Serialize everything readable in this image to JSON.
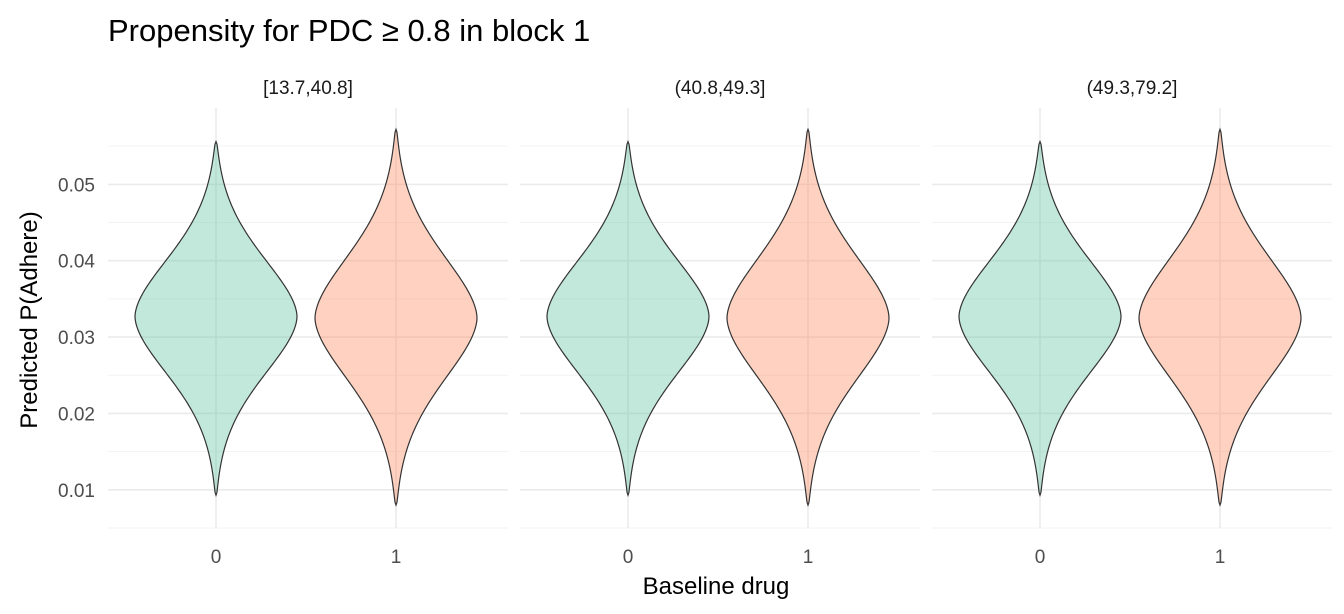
{
  "chart_data": {
    "type": "violin",
    "title": "Propensity for PDC ≥ 0.8 in block 1",
    "xlabel": "Baseline drug",
    "ylabel": "Predicted P(Adhere)",
    "categories": [
      "0",
      "1"
    ],
    "colors": {
      "0": "#66c2a5",
      "1": "#fc8d62"
    },
    "fill_opacity": 0.4,
    "yticks": [
      "0.01",
      "0.02",
      "0.03",
      "0.04",
      "0.05"
    ],
    "ylim": [
      0.005,
      0.06
    ],
    "grid": true,
    "facets": [
      {
        "label": "[13.7,40.8]",
        "groups": [
          {
            "category": "0",
            "min": 0.0093,
            "max": 0.0556,
            "mode": 0.0327
          },
          {
            "category": "1",
            "min": 0.008,
            "max": 0.0572,
            "mode": 0.0325
          }
        ]
      },
      {
        "label": "(40.8,49.3]",
        "groups": [
          {
            "category": "0",
            "min": 0.0093,
            "max": 0.0556,
            "mode": 0.0327
          },
          {
            "category": "1",
            "min": 0.008,
            "max": 0.0572,
            "mode": 0.0325
          }
        ]
      },
      {
        "label": "(49.3,79.2]",
        "groups": [
          {
            "category": "0",
            "min": 0.0093,
            "max": 0.0556,
            "mode": 0.0327
          },
          {
            "category": "1",
            "min": 0.008,
            "max": 0.0572,
            "mode": 0.0325
          }
        ]
      }
    ]
  }
}
